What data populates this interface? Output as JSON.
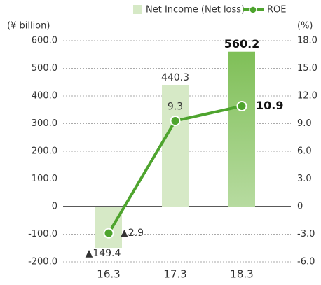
{
  "chart_data": {
    "type": "bar-line",
    "y_axis_label": "(¥ billion)",
    "y2_axis_label": "(%)",
    "categories": [
      "16.3",
      "17.3",
      "18.3"
    ],
    "series": [
      {
        "name": "Net Income (Net loss)",
        "type": "bar",
        "color": "#d6e9c6",
        "colors": [
          "#d6e9c6",
          "#d6e9c6",
          "#8cc565"
        ],
        "values": [
          -149.4,
          440.3,
          560.2
        ],
        "value_labels": [
          "▲149.4",
          "440.3",
          "560.2"
        ]
      },
      {
        "name": "ROE",
        "type": "line",
        "axis": "y2",
        "color": "#4ea42e",
        "values": [
          -2.9,
          9.3,
          10.9
        ],
        "value_labels": [
          "▲2.9",
          "9.3",
          "10.9"
        ]
      }
    ],
    "ylim": [
      -200,
      600
    ],
    "yticks": [
      {
        "value": -200,
        "label": "-200.0"
      },
      {
        "value": -100,
        "label": "-100.0"
      },
      0,
      {
        "value": 100,
        "label": "100.0"
      },
      {
        "value": 200,
        "label": "200.0"
      },
      {
        "value": 300,
        "label": "300.0"
      },
      {
        "value": 400,
        "label": "400.0"
      },
      {
        "value": 500,
        "label": "500.0"
      },
      {
        "value": 600,
        "label": "600.0"
      }
    ],
    "y2lim": [
      -6,
      18
    ],
    "y2ticks": [
      {
        "value": -6,
        "label": "-6.0"
      },
      {
        "value": -3,
        "label": "-3.0"
      },
      0,
      {
        "value": 3,
        "label": "3.0"
      },
      {
        "value": 6,
        "label": "6.0"
      },
      {
        "value": 9,
        "label": "9.0"
      },
      {
        "value": 12,
        "label": "12.0"
      },
      {
        "value": 15,
        "label": "15.0"
      },
      {
        "value": 18,
        "label": "18.0"
      }
    ],
    "grid": true,
    "legend": "top"
  }
}
